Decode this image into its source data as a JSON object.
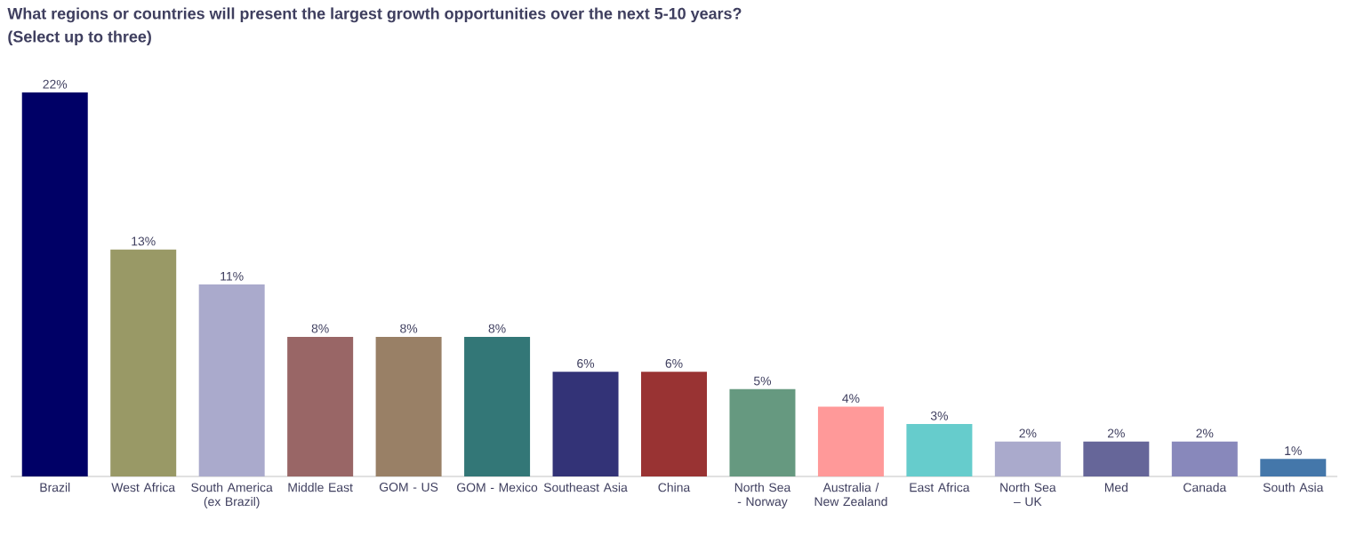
{
  "chart_data": {
    "type": "bar",
    "title": "What regions or countries will present the largest growth opportunities over the next 5-10 years?",
    "subtitle": "(Select up to three)",
    "categories": [
      "Brazil",
      "West Africa",
      "South America (ex Brazil)",
      "Middle East",
      "GOM - US",
      "GOM - Mexico",
      "Southeast Asia",
      "China",
      "North Sea - Norway",
      "Australia / New Zealand",
      "East Africa",
      "North Sea – UK",
      "Med",
      "Canada",
      "South Asia"
    ],
    "values": [
      22,
      13,
      11,
      8,
      8,
      8,
      6,
      6,
      5,
      4,
      3,
      2,
      2,
      2,
      1
    ],
    "value_labels": [
      "22%",
      "13%",
      "11%",
      "8%",
      "8%",
      "8%",
      "6%",
      "6%",
      "5%",
      "4%",
      "3%",
      "2%",
      "2%",
      "2%",
      "1%"
    ],
    "colors": [
      "#000066",
      "#999966",
      "#aaaacc",
      "#996666",
      "#998066",
      "#337777",
      "#333377",
      "#993333",
      "#669980",
      "#ff9999",
      "#66cccc",
      "#aaaacc",
      "#666699",
      "#8888bb",
      "#4477aa"
    ]
  }
}
